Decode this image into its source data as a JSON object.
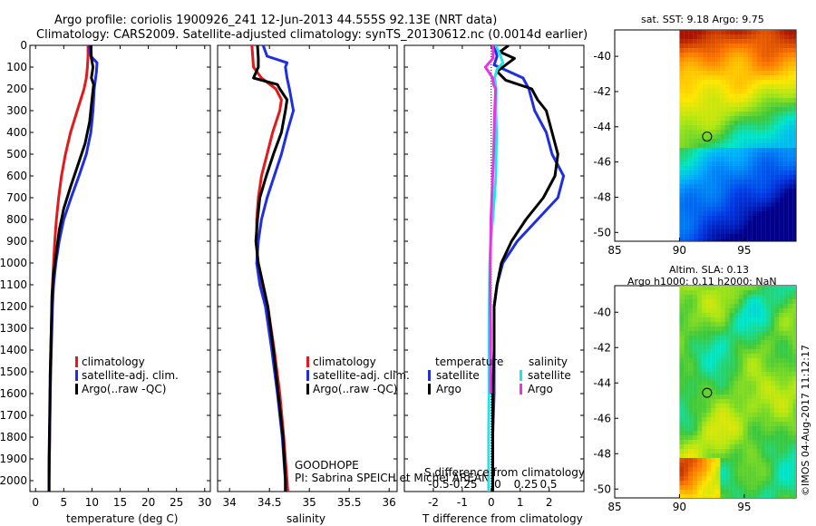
{
  "header": {
    "line1": "Argo profile: coriolis 1900926_241 12-Jun-2013 44.555S 92.13E (NRT data)",
    "line2": "Climatology: CARS2009. Satellite-adjusted climatology: synTS_20130612.nc (0.0014d earlier)"
  },
  "colors": {
    "climatology": "#e31a1c",
    "satellite": "#1f2fe0",
    "argo": "#000000",
    "sat_t": "#22e3e8",
    "argo_s": "#e536e0"
  },
  "chart_data": [
    {
      "id": "temperature",
      "type": "line",
      "xlabel": "temperature (deg C)",
      "ylabel": "",
      "xlim": [
        -1,
        31
      ],
      "ylim": [
        2050,
        0
      ],
      "xticks": [
        0,
        5,
        10,
        15,
        20,
        25,
        30
      ],
      "yticks": [
        0,
        100,
        200,
        300,
        400,
        500,
        600,
        700,
        800,
        900,
        1000,
        1100,
        1200,
        1300,
        1400,
        1500,
        1600,
        1700,
        1800,
        1900,
        2000
      ],
      "legend": {
        "position": "middle-right",
        "entries": [
          "climatology",
          "satellite-adj. clim.",
          "Argo(..raw -QC)"
        ]
      },
      "series": [
        {
          "name": "climatology",
          "color": "#e31a1c",
          "depth": [
            0,
            50,
            100,
            150,
            200,
            300,
            400,
            500,
            600,
            700,
            800,
            900,
            1000,
            1100,
            1200,
            1400,
            1600,
            1800,
            2000,
            2050
          ],
          "values": [
            9.3,
            9.3,
            9.2,
            9.0,
            8.6,
            7.4,
            6.2,
            5.3,
            4.6,
            4.1,
            3.7,
            3.4,
            3.2,
            3.0,
            2.9,
            2.7,
            2.6,
            2.5,
            2.4,
            2.4
          ]
        },
        {
          "name": "satellite-adj. clim.",
          "color": "#1f2fe0",
          "depth": [
            0,
            50,
            80,
            120,
            200,
            300,
            400,
            500,
            600,
            700,
            800,
            900,
            1000,
            1100,
            1200,
            1400,
            1600,
            1800,
            2000,
            2050
          ],
          "values": [
            9.5,
            9.8,
            10.9,
            10.8,
            10.4,
            10.2,
            9.8,
            9.0,
            7.7,
            6.3,
            5.0,
            4.2,
            3.6,
            3.2,
            3.0,
            2.8,
            2.6,
            2.5,
            2.4,
            2.4
          ]
        },
        {
          "name": "Argo",
          "color": "#000000",
          "depth": [
            0,
            60,
            100,
            150,
            180,
            250,
            350,
            450,
            550,
            650,
            750,
            850,
            950,
            1050,
            1150,
            1300,
            1500,
            1700,
            1900,
            2050
          ],
          "values": [
            9.8,
            9.9,
            10.2,
            9.9,
            10.3,
            10.0,
            9.6,
            8.8,
            7.5,
            6.2,
            5.0,
            4.2,
            3.7,
            3.2,
            2.9,
            2.8,
            2.6,
            2.5,
            2.4,
            2.4
          ]
        }
      ]
    },
    {
      "id": "salinity",
      "type": "line",
      "xlabel": "salinity",
      "xlim": [
        33.85,
        36.1
      ],
      "ylim": [
        2050,
        0
      ],
      "xticks": [
        34,
        34.5,
        35,
        35.5,
        36
      ],
      "legend": {
        "position": "middle-right",
        "entries": [
          "climatology",
          "satellite-adj. clim.",
          "Argo(..raw -QC)"
        ]
      },
      "annotation": {
        "line1": "GOODHOPE",
        "line2": "PI: Sabrina SPEICH et Michel AREAN"
      },
      "series": [
        {
          "name": "climatology",
          "color": "#e31a1c",
          "depth": [
            0,
            50,
            100,
            150,
            200,
            250,
            300,
            400,
            500,
            600,
            700,
            800,
            900,
            1000,
            1100,
            1200,
            1400,
            1600,
            1800,
            2000,
            2050
          ],
          "values": [
            34.28,
            34.29,
            34.3,
            34.4,
            34.58,
            34.65,
            34.63,
            34.54,
            34.47,
            34.4,
            34.36,
            34.34,
            34.34,
            34.35,
            34.4,
            34.48,
            34.56,
            34.63,
            34.68,
            34.72,
            34.73
          ]
        },
        {
          "name": "satellite-adj. clim.",
          "color": "#1f2fe0",
          "depth": [
            0,
            50,
            80,
            100,
            150,
            200,
            300,
            400,
            500,
            600,
            700,
            800,
            900,
            1000,
            1100,
            1200,
            1400,
            1600,
            1800,
            2000,
            2050
          ],
          "values": [
            34.42,
            34.47,
            34.72,
            34.7,
            34.72,
            34.75,
            34.8,
            34.72,
            34.65,
            34.56,
            34.47,
            34.4,
            34.36,
            34.34,
            34.38,
            34.45,
            34.53,
            34.6,
            34.66,
            34.7,
            34.7
          ]
        },
        {
          "name": "Argo",
          "color": "#000000",
          "depth": [
            0,
            60,
            100,
            150,
            180,
            200,
            250,
            300,
            400,
            500,
            600,
            700,
            800,
            900,
            1000,
            1100,
            1200,
            1400,
            1600,
            1800,
            2000,
            2050
          ],
          "values": [
            34.35,
            34.36,
            34.36,
            34.3,
            34.6,
            34.63,
            34.72,
            34.7,
            34.65,
            34.55,
            34.46,
            34.38,
            34.35,
            34.33,
            34.36,
            34.42,
            34.48,
            34.55,
            34.61,
            34.67,
            34.7,
            34.7
          ]
        }
      ]
    },
    {
      "id": "difference",
      "type": "line",
      "xlabel": "T difference from climatology",
      "xlabel2": "S difference from climatology",
      "xlim": [
        -3,
        3.2
      ],
      "ylim": [
        2050,
        0
      ],
      "xticks": [
        -2,
        -1,
        0,
        1,
        2
      ],
      "xticks_top": [
        -0.5,
        -0.25,
        0,
        0.25,
        0.5
      ],
      "legend": {
        "temperature_title": "temperature",
        "salinity_title": "salinity",
        "entries": [
          "satellite",
          "Argo",
          "satellite",
          "Argo"
        ]
      },
      "series": [
        {
          "name": "temperature satellite",
          "color": "#1f2fe0",
          "depth": [
            0,
            50,
            90,
            120,
            150,
            200,
            300,
            400,
            500,
            600,
            700,
            800,
            900,
            1000,
            1100,
            1200,
            1400,
            1600,
            1800,
            2050
          ],
          "values": [
            0.1,
            0.2,
            0.1,
            0.6,
            1.1,
            1.3,
            1.5,
            1.9,
            2.1,
            2.5,
            2.3,
            1.6,
            0.9,
            0.4,
            0.2,
            0.1,
            0.1,
            0.1,
            0.05,
            0.05
          ]
        },
        {
          "name": "temperature Argo",
          "color": "#000000",
          "depth": [
            0,
            30,
            60,
            90,
            120,
            160,
            200,
            250,
            300,
            400,
            500,
            600,
            700,
            800,
            900,
            1000,
            1100,
            1200,
            1400,
            1600,
            1800,
            2050
          ],
          "values": [
            0.6,
            0.3,
            0.8,
            0.5,
            0.2,
            0.5,
            1.4,
            1.6,
            1.9,
            2.1,
            2.3,
            2.2,
            1.8,
            1.2,
            0.7,
            0.35,
            0.2,
            0.1,
            0.1,
            0.05,
            0.05,
            0.05
          ]
        },
        {
          "name": "salinity satellite",
          "color": "#22e3e8",
          "depth": [
            0,
            40,
            80,
            110,
            150,
            200,
            300,
            400,
            500,
            600,
            700,
            800,
            900,
            1000,
            1200,
            1400,
            1600,
            1800,
            2050
          ],
          "values": [
            0.15,
            0.3,
            0.4,
            0.2,
            0.12,
            0.17,
            0.16,
            0.18,
            0.17,
            0.16,
            0.11,
            0.05,
            -0.02,
            -0.05,
            -0.07,
            -0.08,
            -0.08,
            -0.09,
            -0.09
          ]
        },
        {
          "name": "salinity Argo",
          "color": "#e536e0",
          "depth": [
            0,
            30,
            60,
            100,
            130,
            150,
            180,
            200,
            300,
            400,
            500,
            600,
            700,
            800,
            900,
            1000,
            1100,
            1200,
            1300,
            1500,
            1600
          ],
          "values": [
            0.05,
            0.07,
            0.06,
            -0.2,
            -0.05,
            0.05,
            0.08,
            0.15,
            0.12,
            0.1,
            0.08,
            0.05,
            0.02,
            -0.01,
            -0.02,
            -0.03,
            -0.04,
            -0.03,
            -0.02,
            -0.02,
            -0.02
          ]
        }
      ]
    },
    {
      "id": "sst_map",
      "type": "heatmap",
      "title": "sat. SST: 9.18 Argo: 9.75",
      "xticks": [
        85,
        90,
        95
      ],
      "yticks": [
        -40,
        -42,
        -44,
        -46,
        -48,
        -50
      ],
      "xlim": [
        85,
        99
      ],
      "ylim": [
        -50.5,
        -38.5
      ],
      "marker": {
        "lon": 92.13,
        "lat": -44.555
      }
    },
    {
      "id": "sla_map",
      "type": "heatmap",
      "title": "Altim. SLA: 0.13",
      "subtitle": "Argo h1000: 0.11 h2000: NaN",
      "xticks": [
        85,
        90,
        95
      ],
      "yticks": [
        -40,
        -42,
        -44,
        -46,
        -48,
        -50
      ],
      "xlim": [
        85,
        99
      ],
      "ylim": [
        -50.5,
        -38.5
      ],
      "marker": {
        "lon": 92.13,
        "lat": -44.555
      }
    }
  ],
  "watermark": "©IMOS 04-Aug-2017 11:12:17"
}
